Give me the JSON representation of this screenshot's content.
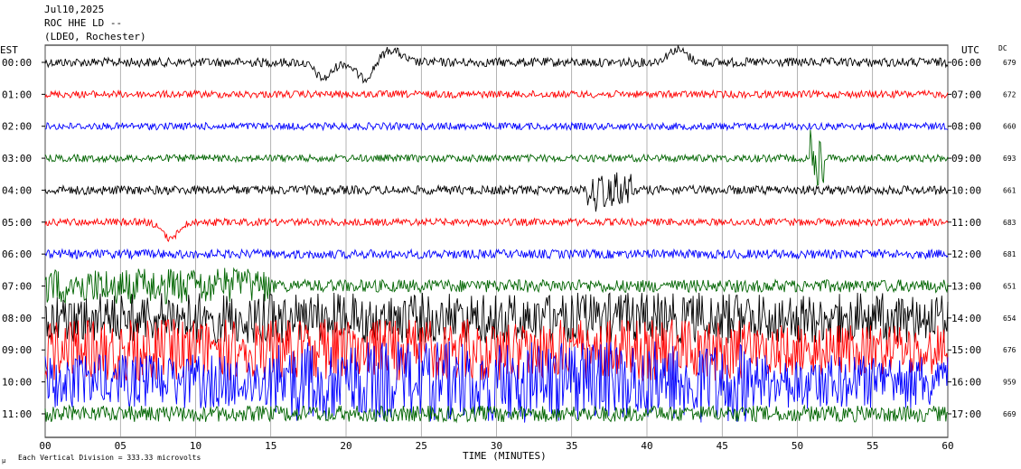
{
  "header": {
    "line1": "Jul10,2025",
    "line2": "ROC HHE LD --",
    "line3": "(LDEO, Rochester)"
  },
  "left_axis_title": "EST",
  "right_axis_title": "UTC",
  "dc_title": "DC",
  "footer_note": "Each Vertical Division =  333.33 microvolts",
  "corner_mark": "µ",
  "colors": {
    "black": "#000000",
    "red": "#ff0000",
    "blue": "#0000ff",
    "green": "#006400",
    "grid": "#808080"
  },
  "chart_data": {
    "type": "line",
    "title": "ROC HHE LD --",
    "xlabel": "TIME (MINUTES)",
    "xlim": [
      0,
      60
    ],
    "x_ticks": [
      "00",
      "05",
      "10",
      "15",
      "20",
      "25",
      "30",
      "35",
      "40",
      "45",
      "50",
      "55",
      "60"
    ],
    "rows": [
      {
        "est": "00:00",
        "utc": "06:00",
        "dc": "679",
        "color": "black"
      },
      {
        "est": "01:00",
        "utc": "07:00",
        "dc": "672",
        "color": "red"
      },
      {
        "est": "02:00",
        "utc": "08:00",
        "dc": "660",
        "color": "blue"
      },
      {
        "est": "03:00",
        "utc": "09:00",
        "dc": "693",
        "color": "green"
      },
      {
        "est": "04:00",
        "utc": "10:00",
        "dc": "661",
        "color": "black"
      },
      {
        "est": "05:00",
        "utc": "11:00",
        "dc": "683",
        "color": "red"
      },
      {
        "est": "06:00",
        "utc": "12:00",
        "dc": "681",
        "color": "blue"
      },
      {
        "est": "07:00",
        "utc": "13:00",
        "dc": "651",
        "color": "green"
      },
      {
        "est": "08:00",
        "utc": "14:00",
        "dc": "654",
        "color": "black"
      },
      {
        "est": "09:00",
        "utc": "15:00",
        "dc": "676",
        "color": "red"
      },
      {
        "est": "10:00",
        "utc": "16:00",
        "dc": "959",
        "color": "blue"
      },
      {
        "est": "11:00",
        "utc": "17:00",
        "dc": "669",
        "color": "green"
      }
    ],
    "units": "microvolts",
    "vertical_division_microvolts": 333.33,
    "events": [
      {
        "row": "00:00",
        "minute": 18.5,
        "feature": "dip"
      },
      {
        "row": "00:00",
        "minute": 21.2,
        "feature": "dip"
      },
      {
        "row": "00:00",
        "minute": 23,
        "feature": "bump"
      },
      {
        "row": "00:00",
        "minute": 42,
        "feature": "bump"
      },
      {
        "row": "03:00",
        "minute": 51.3,
        "feature": "spike"
      },
      {
        "row": "04:00",
        "minute": 37.5,
        "feature": "burst"
      },
      {
        "row": "05:00",
        "minute": 8.3,
        "feature": "dip"
      }
    ]
  }
}
